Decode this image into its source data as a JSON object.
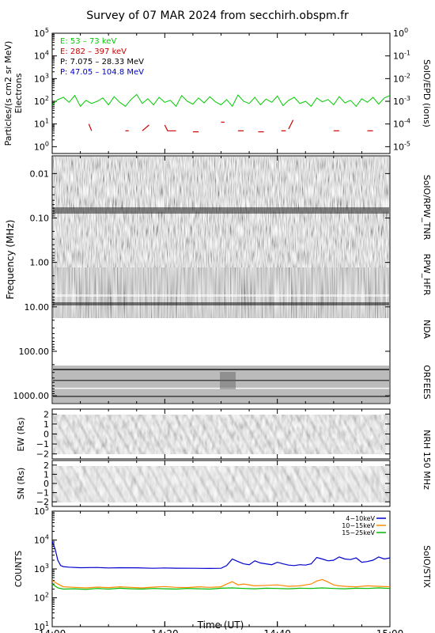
{
  "title": "Survey of 07 MAR 2024 from secchirh.obspm.fr",
  "chart_data": [
    {
      "type": "line",
      "panel": "SoIO/EPD",
      "ylabel": "Particles/(s cm2 sr MeV)",
      "ylabel2": "Electrons",
      "right_label": "SoIO/EPD (ions)",
      "y_scale": "log",
      "ylim": [
        0.5,
        100000
      ],
      "yticks": [
        "10^0",
        "10^1",
        "10^2",
        "10^3",
        "10^4",
        "10^5"
      ],
      "right_ylim": [
        5e-06,
        1
      ],
      "right_yticks": [
        "10^-5",
        "10^-4",
        "10^-3",
        "10^-2",
        "10^-1",
        "10^0"
      ],
      "legend": [
        {
          "label": "E: 53 – 73 keV",
          "color": "#00cc00"
        },
        {
          "label": "E: 282 – 397 keV",
          "color": "#cc0000"
        },
        {
          "label": "P: 7.075 – 28.33 MeV",
          "color": "#000000"
        },
        {
          "label": "P: 47.05 – 104.8 MeV",
          "color": "#0000cc"
        }
      ],
      "series": [
        {
          "name": "E: 53 – 73 keV",
          "color": "#00cc00",
          "x_minutes": [
            0,
            1,
            2,
            3,
            4,
            5,
            6,
            7,
            8,
            9,
            10,
            11,
            12,
            13,
            14,
            15,
            16,
            17,
            18,
            19,
            20,
            21,
            22,
            23,
            24,
            25,
            26,
            27,
            28,
            29,
            30,
            31,
            32,
            33,
            34,
            35,
            36,
            37,
            38,
            39,
            40,
            41,
            42,
            43,
            44,
            45,
            46,
            47,
            48,
            49,
            50,
            51,
            52,
            53,
            54,
            55,
            56,
            57,
            58,
            59,
            60
          ],
          "values": [
            70,
            120,
            150,
            90,
            180,
            60,
            110,
            80,
            100,
            140,
            70,
            160,
            90,
            60,
            120,
            200,
            80,
            130,
            70,
            150,
            90,
            110,
            60,
            180,
            100,
            75,
            140,
            85,
            160,
            95,
            70,
            120,
            60,
            190,
            100,
            80,
            150,
            70,
            125,
            90,
            170,
            65,
            110,
            150,
            80,
            100,
            60,
            140,
            95,
            120,
            70,
            160,
            85,
            110,
            60,
            130,
            90,
            150,
            75,
            140,
            180
          ]
        },
        {
          "name": "E: 282 – 397 keV",
          "color": "#cc0000",
          "segments": [
            [
              [
                6.5,
                10
              ],
              [
                7.0,
                5
              ]
            ],
            [
              [
                13.0,
                5
              ],
              [
                13.6,
                5
              ]
            ],
            [
              [
                16.0,
                5
              ],
              [
                17.2,
                9
              ]
            ],
            [
              [
                20.0,
                9
              ],
              [
                20.5,
                5
              ],
              [
                22.0,
                5
              ]
            ],
            [
              [
                25.0,
                4.5
              ],
              [
                26.0,
                4.5
              ]
            ],
            [
              [
                30.0,
                12
              ],
              [
                30.6,
                12
              ]
            ],
            [
              [
                33.0,
                5
              ],
              [
                34.0,
                5
              ]
            ],
            [
              [
                36.6,
                4.5
              ],
              [
                37.6,
                4.5
              ]
            ],
            [
              [
                40.7,
                5
              ],
              [
                41.5,
                5
              ]
            ],
            [
              [
                42.0,
                6
              ],
              [
                42.8,
                15
              ]
            ],
            [
              [
                50.0,
                5
              ],
              [
                51.0,
                5
              ]
            ],
            [
              [
                56.0,
                5
              ],
              [
                57.0,
                5
              ]
            ]
          ]
        }
      ]
    },
    {
      "type": "heatmap",
      "panel": "SoIO/RPW_TNR, RPW_HFR, NDA, ORFEES",
      "ylabel": "Frequency (MHz)",
      "right_labels": [
        "SoIO/RPW_TNR",
        "RPW_HFR",
        "NDA",
        "ORFEES"
      ],
      "y_scale": "log",
      "ylim": [
        0.004,
        1500
      ],
      "yticks": [
        "0.01",
        "0.10",
        "1.00",
        "10.00",
        "100.00",
        "1000.00"
      ]
    },
    {
      "type": "heatmap",
      "panel": "NRH 150 MHz EW",
      "ylabel": "EW (Rs)",
      "right_label": "NRH 150 MHz",
      "ylim": [
        -2.5,
        2.5
      ],
      "yticks": [
        "2",
        "1",
        "0",
        "−1",
        "−2"
      ]
    },
    {
      "type": "heatmap",
      "panel": "NRH 150 MHz SN",
      "ylabel": "SN (Rs)",
      "ylim": [
        -2.5,
        2.5
      ],
      "yticks": [
        "2",
        "1",
        "0",
        "−1",
        "−2"
      ]
    },
    {
      "type": "line",
      "panel": "SoIO/STIX",
      "ylabel": "COUNTS",
      "right_label": "SoIO/STIX",
      "y_scale": "log",
      "ylim": [
        10,
        100000
      ],
      "yticks": [
        "10^1",
        "10^2",
        "10^3",
        "10^4",
        "10^5"
      ],
      "xlabel": "Time (UT)",
      "xticks": [
        "14:00",
        "14:20",
        "14:40",
        "15:00"
      ],
      "xlim_minutes": [
        0,
        60
      ],
      "legend": [
        {
          "label": "4−10keV",
          "color": "#0000cc"
        },
        {
          "label": "10−15keV",
          "color": "#ff8800"
        },
        {
          "label": "15−25keV",
          "color": "#00bb00"
        }
      ],
      "series": [
        {
          "name": "4−10keV",
          "color": "#0000cc",
          "x_minutes": [
            0,
            0.5,
            1,
            1.5,
            2,
            3,
            5,
            8,
            10,
            12,
            15,
            18,
            20,
            22,
            25,
            28,
            30,
            31,
            32,
            33,
            34,
            35,
            36,
            37,
            38,
            39,
            40,
            41,
            42,
            43,
            44,
            45,
            46,
            47,
            48,
            49,
            50,
            51,
            52,
            53,
            54,
            55,
            56,
            57,
            58,
            59,
            60
          ],
          "values": [
            9000,
            5000,
            2000,
            1300,
            1200,
            1150,
            1100,
            1120,
            1080,
            1100,
            1090,
            1050,
            1080,
            1060,
            1050,
            1040,
            1050,
            1300,
            2200,
            1800,
            1500,
            1400,
            1900,
            1600,
            1500,
            1400,
            1700,
            1500,
            1350,
            1300,
            1400,
            1350,
            1500,
            2500,
            2200,
            1900,
            2000,
            2600,
            2200,
            2100,
            2400,
            1700,
            1800,
            2000,
            2600,
            2200,
            2400
          ]
        },
        {
          "name": "10−15keV",
          "color": "#ff8800",
          "x_minutes": [
            0,
            1,
            2,
            4,
            6,
            8,
            10,
            12,
            14,
            16,
            18,
            20,
            22,
            24,
            26,
            28,
            30,
            31,
            32,
            33,
            34,
            36,
            38,
            40,
            42,
            44,
            46,
            47,
            48,
            49,
            50,
            51,
            52,
            54,
            56,
            58,
            60
          ],
          "values": [
            400,
            300,
            240,
            230,
            220,
            235,
            225,
            240,
            230,
            220,
            235,
            245,
            230,
            225,
            240,
            230,
            240,
            300,
            360,
            280,
            300,
            260,
            270,
            280,
            250,
            260,
            300,
            380,
            430,
            350,
            280,
            260,
            250,
            240,
            260,
            250,
            240
          ]
        },
        {
          "name": "15−25keV",
          "color": "#00bb00",
          "x_minutes": [
            0,
            1,
            2,
            4,
            6,
            8,
            10,
            12,
            14,
            16,
            18,
            20,
            22,
            24,
            26,
            28,
            30,
            32,
            34,
            36,
            38,
            40,
            42,
            44,
            46,
            48,
            50,
            52,
            54,
            56,
            58,
            60
          ],
          "values": [
            300,
            220,
            200,
            205,
            195,
            210,
            200,
            215,
            205,
            200,
            210,
            205,
            200,
            210,
            205,
            200,
            215,
            220,
            210,
            205,
            215,
            210,
            205,
            215,
            210,
            220,
            210,
            205,
            215,
            210,
            220,
            210
          ]
        }
      ]
    }
  ]
}
